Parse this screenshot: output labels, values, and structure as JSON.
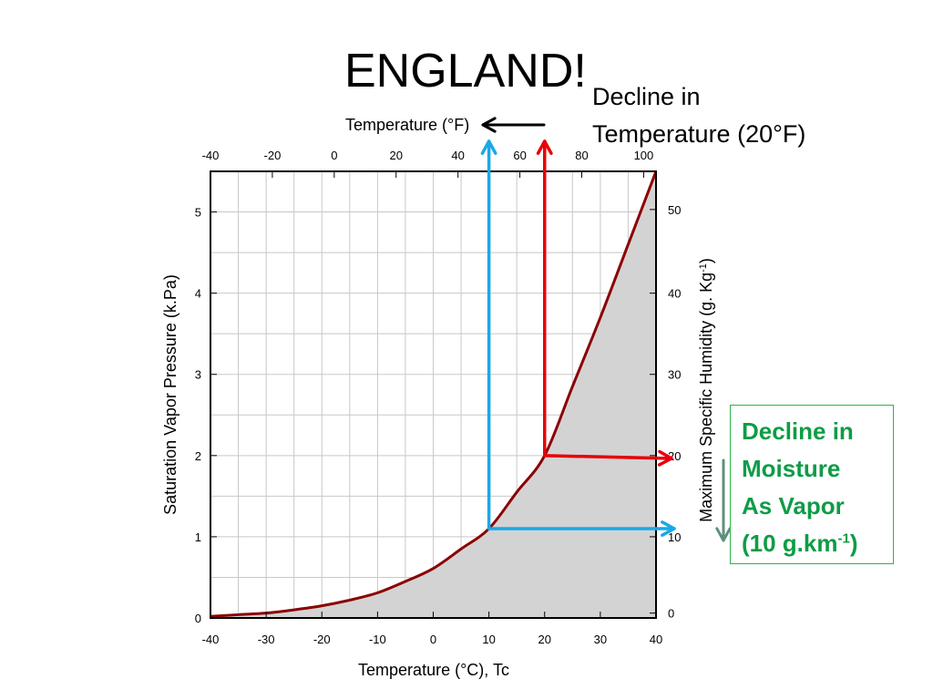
{
  "slide": {
    "title": "ENGLAND!",
    "temp_note_line1": "Decline in",
    "temp_note_line2": "Temperature (20°F)",
    "moisture_note": {
      "line1": "Decline in",
      "line2": "Moisture",
      "line3": "As Vapor",
      "line4_main": "(10 g.km",
      "line4_sup": "-1",
      "line4_end": ")"
    }
  },
  "colors": {
    "curve": "#8b0000",
    "fill": "#d3d3d3",
    "grid": "#c8c8c8",
    "red_arrow": "#e8000b",
    "blue_arrow": "#19a9e6",
    "black_arrow": "#000000",
    "down_arrow": "#5f8f80",
    "note_text": "#0e9c46"
  },
  "chart_data": {
    "type": "line",
    "description_series": "Saturation vapor pressure vs temperature (area under curve shaded)",
    "x_bottom": {
      "label": "Temperature (°C), Tc",
      "range": [
        -40,
        40
      ],
      "ticks": [
        -40,
        -30,
        -20,
        -10,
        0,
        10,
        20,
        30,
        40
      ]
    },
    "x_top": {
      "label": "Temperature (°F)",
      "range": [
        -40,
        104
      ],
      "ticks": [
        -40,
        -20,
        0,
        20,
        40,
        60,
        80,
        100
      ]
    },
    "y_left": {
      "label": "Saturation Vapor Pressure (k.Pa)",
      "range": [
        0,
        5.5
      ],
      "ticks": [
        0,
        1,
        2,
        3,
        4,
        5
      ]
    },
    "y_right": {
      "label_main": "Maximum Specific Humidity (g. Kg",
      "label_sup": "-1",
      "label_end": ")",
      "range": [
        0,
        55
      ],
      "ticks": [
        0,
        10,
        20,
        30,
        40,
        50
      ],
      "tick_y_pressure": [
        0.06,
        1.0,
        2.0,
        3.0,
        4.0,
        5.03
      ]
    },
    "series": [
      {
        "x": [
          -40,
          -35,
          -30,
          -25,
          -20,
          -15,
          -10,
          -5,
          0,
          5,
          10,
          15,
          20,
          25,
          30,
          35,
          40
        ],
        "y": [
          0.02,
          0.04,
          0.06,
          0.1,
          0.15,
          0.22,
          0.31,
          0.45,
          0.61,
          0.85,
          1.1,
          1.55,
          2.0,
          2.85,
          3.7,
          4.6,
          5.5
        ]
      }
    ],
    "annotations": {
      "red_path": {
        "temp_c": 20,
        "pressure": 2.0,
        "humidity": 20
      },
      "blue_path": {
        "temp_c": 10,
        "pressure": 1.1,
        "humidity": 10
      }
    }
  }
}
